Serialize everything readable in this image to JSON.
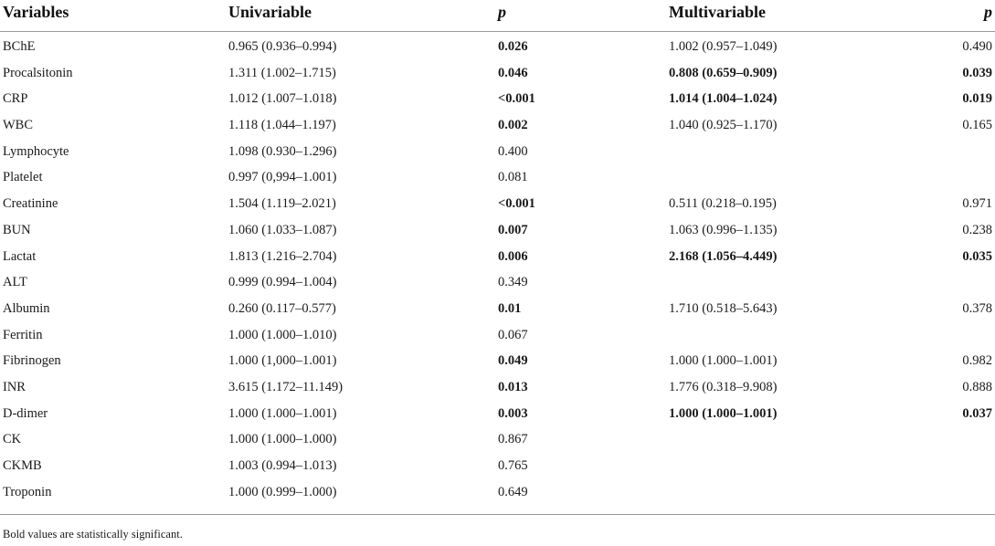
{
  "table": {
    "headers": {
      "variables": "Variables",
      "univariable": "Univariable",
      "p1": "p",
      "multivariable": "Multivariable",
      "p2": "p"
    },
    "rows": [
      {
        "variable": "BChE",
        "uni": "0.965 (0.936–0.994)",
        "p_uni": "0.026",
        "p_uni_bold": true,
        "multi": "1.002 (0.957–1.049)",
        "multi_bold": false,
        "p_multi": "0.490",
        "p_multi_bold": false
      },
      {
        "variable": "Procalsitonin",
        "uni": "1.311 (1.002–1.715)",
        "p_uni": "0.046",
        "p_uni_bold": true,
        "multi": "0.808 (0.659–0.909)",
        "multi_bold": true,
        "p_multi": "0.039",
        "p_multi_bold": true
      },
      {
        "variable": "CRP",
        "uni": "1.012 (1.007–1.018)",
        "p_uni": "<0.001",
        "p_uni_bold": true,
        "multi": "1.014 (1.004–1.024)",
        "multi_bold": true,
        "p_multi": "0.019",
        "p_multi_bold": true
      },
      {
        "variable": "WBC",
        "uni": "1.118 (1.044–1.197)",
        "p_uni": "0.002",
        "p_uni_bold": true,
        "multi": "1.040 (0.925–1.170)",
        "multi_bold": false,
        "p_multi": "0.165",
        "p_multi_bold": false
      },
      {
        "variable": "Lymphocyte",
        "uni": "1.098 (0.930–1.296)",
        "p_uni": "0.400",
        "p_uni_bold": false,
        "multi": "",
        "multi_bold": false,
        "p_multi": "",
        "p_multi_bold": false
      },
      {
        "variable": "Platelet",
        "uni": "0.997 (0,994–1.001)",
        "p_uni": "0.081",
        "p_uni_bold": false,
        "multi": "",
        "multi_bold": false,
        "p_multi": "",
        "p_multi_bold": false
      },
      {
        "variable": "Creatinine",
        "uni": "1.504 (1.119–2.021)",
        "p_uni": "<0.001",
        "p_uni_bold": true,
        "multi": "0.511 (0.218–0.195)",
        "multi_bold": false,
        "p_multi": "0.971",
        "p_multi_bold": false
      },
      {
        "variable": "BUN",
        "uni": "1.060 (1.033–1.087)",
        "p_uni": "0.007",
        "p_uni_bold": true,
        "multi": "1.063 (0.996–1.135)",
        "multi_bold": false,
        "p_multi": "0.238",
        "p_multi_bold": false
      },
      {
        "variable": "Lactat",
        "uni": "1.813 (1.216–2.704)",
        "p_uni": "0.006",
        "p_uni_bold": true,
        "multi": "2.168 (1.056–4.449)",
        "multi_bold": true,
        "p_multi": "0.035",
        "p_multi_bold": true
      },
      {
        "variable": "ALT",
        "uni": "0.999 (0.994–1.004)",
        "p_uni": "0.349",
        "p_uni_bold": false,
        "multi": "",
        "multi_bold": false,
        "p_multi": "",
        "p_multi_bold": false
      },
      {
        "variable": "Albumin",
        "uni": "0.260 (0.117–0.577)",
        "p_uni": "0.01",
        "p_uni_bold": true,
        "multi": "1.710 (0.518–5.643)",
        "multi_bold": false,
        "p_multi": "0.378",
        "p_multi_bold": false
      },
      {
        "variable": "Ferritin",
        "uni": "1.000 (1.000–1.010)",
        "p_uni": "0.067",
        "p_uni_bold": false,
        "multi": "",
        "multi_bold": false,
        "p_multi": "",
        "p_multi_bold": false
      },
      {
        "variable": "Fibrinogen",
        "uni": "1.000 (1,000–1.001)",
        "p_uni": "0.049",
        "p_uni_bold": true,
        "multi": "1.000 (1.000–1.001)",
        "multi_bold": false,
        "p_multi": "0.982",
        "p_multi_bold": false
      },
      {
        "variable": "INR",
        "uni": "3.615 (1.172–11.149)",
        "p_uni": "0.013",
        "p_uni_bold": true,
        "multi": "1.776 (0.318–9.908)",
        "multi_bold": false,
        "p_multi": "0.888",
        "p_multi_bold": false
      },
      {
        "variable": "D-dimer",
        "uni": "1.000 (1.000–1.001)",
        "p_uni": "0.003",
        "p_uni_bold": true,
        "multi": "1.000 (1.000–1.001)",
        "multi_bold": true,
        "p_multi": "0.037",
        "p_multi_bold": true
      },
      {
        "variable": "CK",
        "uni": "1.000 (1.000–1.000)",
        "p_uni": "0.867",
        "p_uni_bold": false,
        "multi": "",
        "multi_bold": false,
        "p_multi": "",
        "p_multi_bold": false
      },
      {
        "variable": "CKMB",
        "uni": "1.003 (0.994–1.013)",
        "p_uni": "0.765",
        "p_uni_bold": false,
        "multi": "",
        "multi_bold": false,
        "p_multi": "",
        "p_multi_bold": false
      },
      {
        "variable": "Troponin",
        "uni": "1.000 (0.999–1.000)",
        "p_uni": "0.649",
        "p_uni_bold": false,
        "multi": "",
        "multi_bold": false,
        "p_multi": "",
        "p_multi_bold": false
      }
    ]
  },
  "footnote": "Bold values are statistically significant.",
  "colors": {
    "text": "#1a1a1a",
    "rule": "#9a9a9a"
  }
}
